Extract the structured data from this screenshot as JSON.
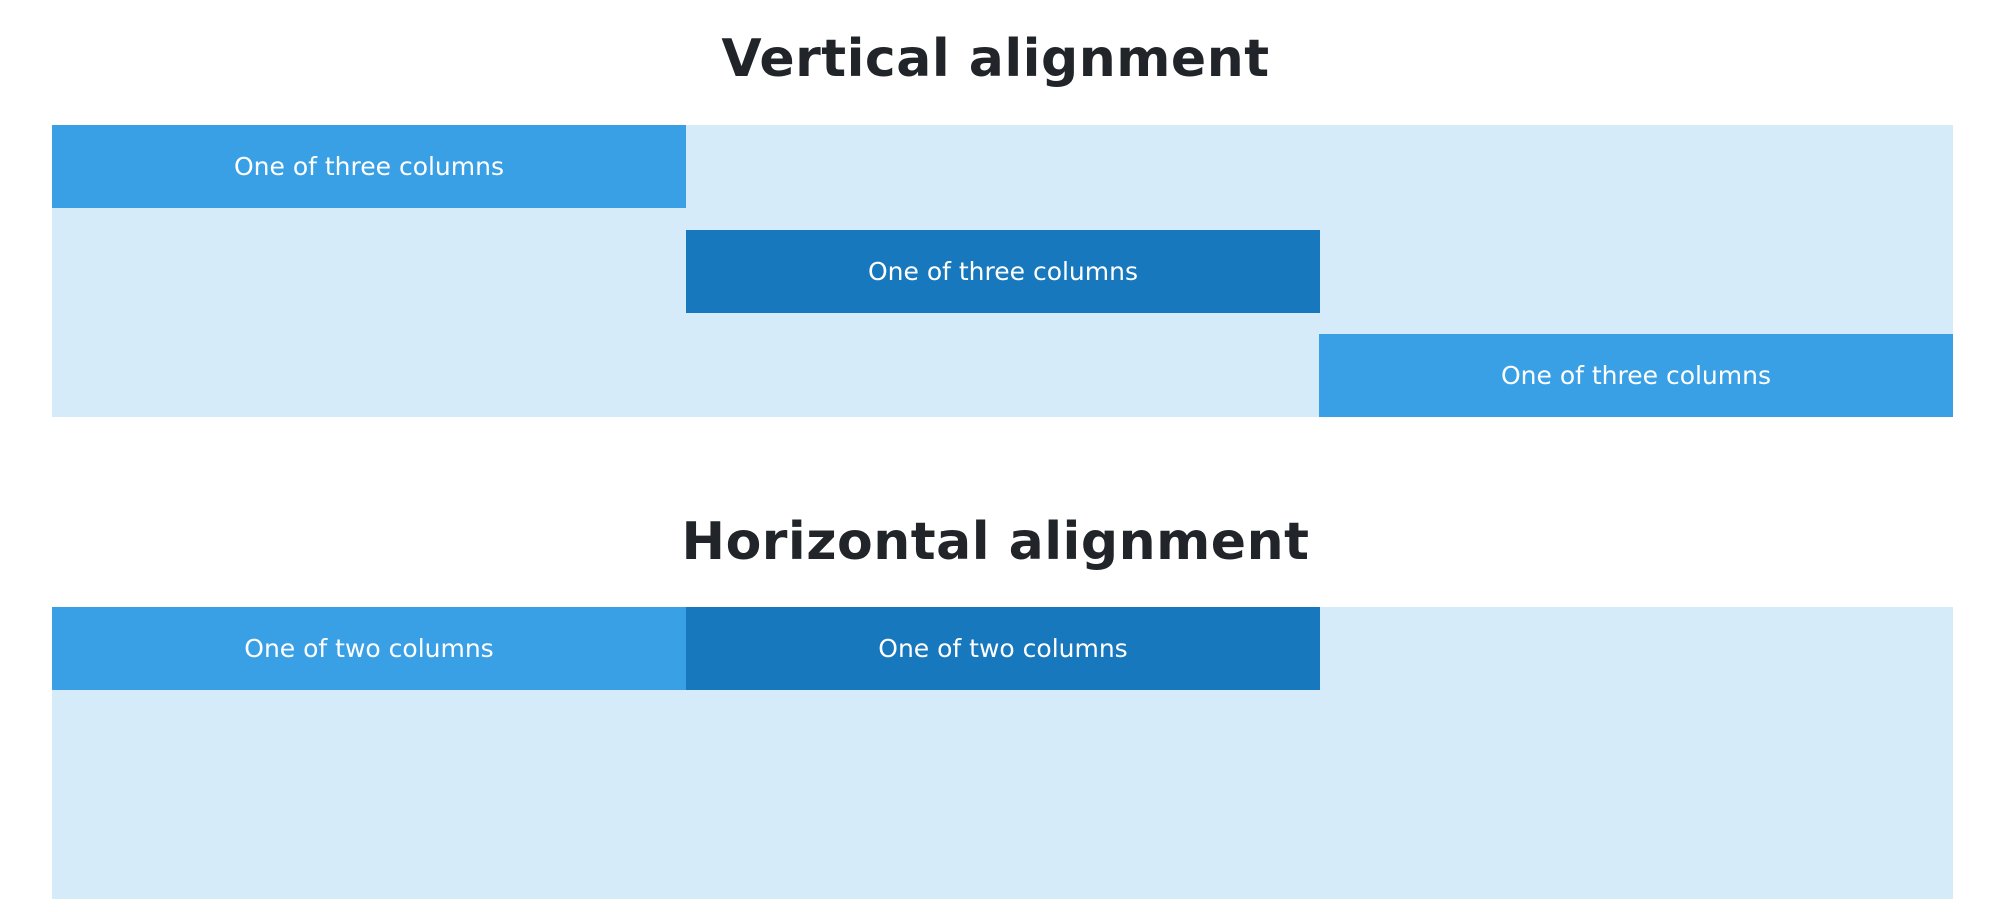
{
  "vertical_section": {
    "title": "Vertical alignment",
    "columns": [
      {
        "label": "One of three columns",
        "alignment": "start",
        "color": "#3aa0e6"
      },
      {
        "label": "One of three columns",
        "alignment": "center",
        "color": "#1878bd"
      },
      {
        "label": "One of three columns",
        "alignment": "end",
        "color": "#3aa0e6"
      }
    ]
  },
  "horizontal_section": {
    "title": "Horizontal alignment",
    "columns": [
      {
        "label": "One of two columns",
        "color": "#3aa0e6"
      },
      {
        "label": "One of two columns",
        "color": "#1878bd"
      }
    ]
  },
  "colors": {
    "row_background": "#d6ebf9",
    "column_light": "#3aa0e6",
    "column_dark": "#1878bd",
    "text_dark": "#212529",
    "text_light": "#ffffff"
  }
}
